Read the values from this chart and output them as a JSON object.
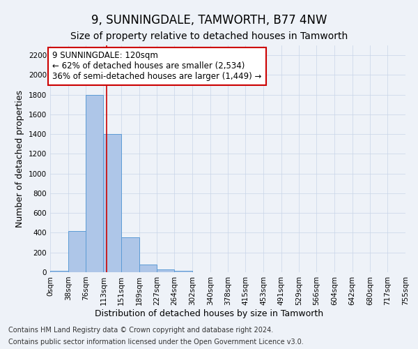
{
  "title": "9, SUNNINGDALE, TAMWORTH, B77 4NW",
  "subtitle": "Size of property relative to detached houses in Tamworth",
  "xlabel": "Distribution of detached houses by size in Tamworth",
  "ylabel": "Number of detached properties",
  "footer_line1": "Contains HM Land Registry data © Crown copyright and database right 2024.",
  "footer_line2": "Contains public sector information licensed under the Open Government Licence v3.0.",
  "bar_edges": [
    0,
    38,
    76,
    113,
    151,
    189,
    227,
    264,
    302,
    340,
    378,
    415,
    453,
    491,
    529,
    566,
    604,
    642,
    680,
    717,
    755
  ],
  "bar_heights": [
    15,
    420,
    1800,
    1400,
    355,
    75,
    25,
    15,
    0,
    0,
    0,
    0,
    0,
    0,
    0,
    0,
    0,
    0,
    0,
    0
  ],
  "bar_color": "#aec6e8",
  "bar_edge_color": "#5b9bd5",
  "property_size": 120,
  "red_line_color": "#cc0000",
  "annotation_text": "9 SUNNINGDALE: 120sqm\n← 62% of detached houses are smaller (2,534)\n36% of semi-detached houses are larger (1,449) →",
  "annotation_box_color": "#ffffff",
  "annotation_box_edge_color": "#cc0000",
  "ylim": [
    0,
    2300
  ],
  "yticks": [
    0,
    200,
    400,
    600,
    800,
    1000,
    1200,
    1400,
    1600,
    1800,
    2000,
    2200
  ],
  "background_color": "#eef2f8",
  "title_fontsize": 12,
  "subtitle_fontsize": 10,
  "axis_label_fontsize": 9,
  "tick_fontsize": 7.5,
  "annotation_fontsize": 8.5,
  "footer_fontsize": 7
}
